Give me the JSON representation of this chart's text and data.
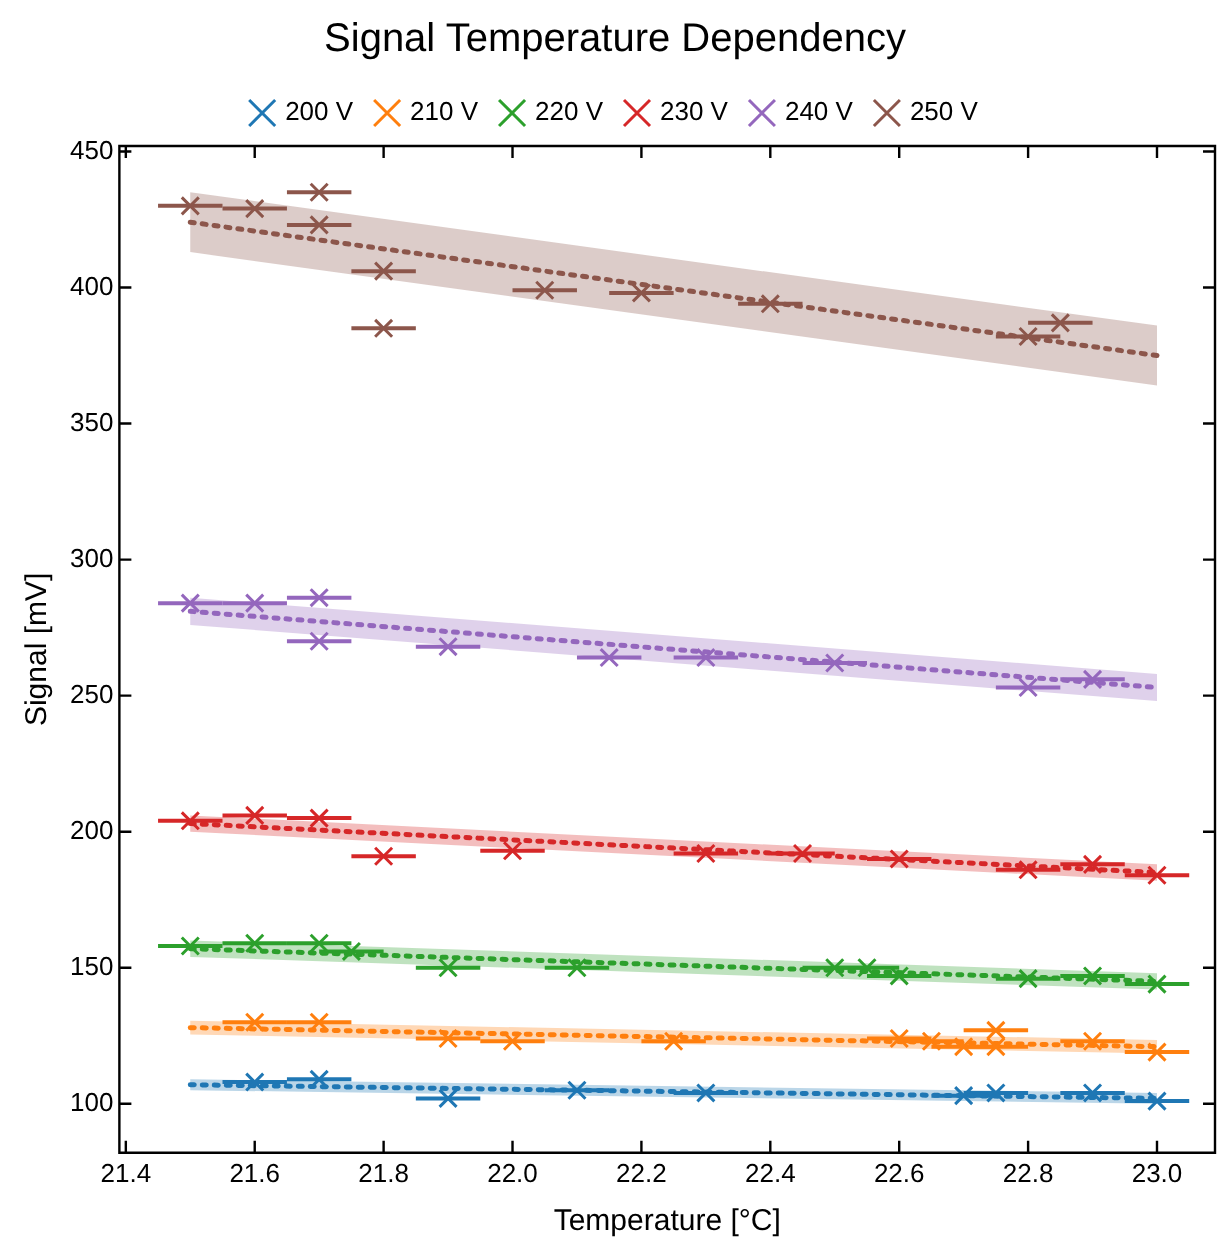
{
  "chart_data": {
    "type": "scatter",
    "title": "Signal Temperature Dependency",
    "xlabel": "Temperature [°C]",
    "ylabel": "Signal [mV]",
    "xlim": [
      21.39,
      23.09
    ],
    "ylim": [
      82,
      452
    ],
    "xticks": [
      21.4,
      21.6,
      21.8,
      {
        "value": 22,
        "label": "22.0"
      },
      22.2,
      22.4,
      22.6,
      22.8,
      {
        "value": 23,
        "label": "23.0"
      }
    ],
    "yticks": [
      100,
      150,
      200,
      250,
      300,
      350,
      400,
      450
    ],
    "grid": false,
    "legend": "top",
    "marker": "cross",
    "series": [
      {
        "name": "200 V",
        "color": "#1f77b4",
        "x": [
          21.6,
          21.7,
          21.9,
          22.1,
          22.3,
          22.7,
          22.75,
          22.9,
          23.0
        ],
        "values": [
          108,
          109,
          102,
          105,
          104,
          103,
          104,
          104,
          101
        ],
        "xerrors": [
          0.05,
          0.05,
          0.05,
          0.05,
          0.05,
          0.05,
          0.05,
          0.05,
          0.05
        ]
      },
      {
        "name": "210 V",
        "color": "#ff7f0e",
        "x": [
          21.6,
          21.7,
          21.9,
          22.0,
          22.25,
          22.6,
          22.65,
          22.7,
          22.75,
          22.75,
          22.9,
          23.0
        ],
        "values": [
          130,
          130,
          124,
          123,
          123,
          124,
          123,
          121,
          121,
          127,
          123,
          119
        ],
        "xerrors": [
          0.05,
          0.05,
          0.05,
          0.05,
          0.05,
          0.05,
          0.05,
          0.05,
          0.05,
          0.05,
          0.05,
          0.05
        ]
      },
      {
        "name": "220 V",
        "color": "#2ca02c",
        "x": [
          21.5,
          21.6,
          21.7,
          21.75,
          21.9,
          22.1,
          22.5,
          22.55,
          22.6,
          22.8,
          22.9,
          23.0
        ],
        "values": [
          158,
          159,
          159,
          156,
          150,
          150,
          150,
          150,
          147,
          146,
          147,
          144
        ],
        "xerrors": [
          0.05,
          0.05,
          0.05,
          0.05,
          0.05,
          0.05,
          0.05,
          0.05,
          0.05,
          0.05,
          0.05,
          0.05
        ]
      },
      {
        "name": "230 V",
        "color": "#d62728",
        "x": [
          21.5,
          21.6,
          21.7,
          21.8,
          22.0,
          22.3,
          22.45,
          22.6,
          22.8,
          22.9,
          23.0
        ],
        "values": [
          204,
          206,
          205,
          191,
          193,
          192,
          192,
          190,
          186,
          188,
          184
        ],
        "xerrors": [
          0.05,
          0.05,
          0.05,
          0.05,
          0.05,
          0.05,
          0.05,
          0.05,
          0.05,
          0.05,
          0.05
        ]
      },
      {
        "name": "240 V",
        "color": "#9467bd",
        "x": [
          21.5,
          21.6,
          21.7,
          21.7,
          21.9,
          22.15,
          22.3,
          22.5,
          22.8,
          22.9
        ],
        "values": [
          284,
          284,
          286,
          270,
          268,
          264,
          264,
          262,
          253,
          256
        ],
        "xerrors": [
          0.05,
          0.05,
          0.05,
          0.05,
          0.05,
          0.05,
          0.05,
          0.05,
          0.05,
          0.05
        ]
      },
      {
        "name": "250 V",
        "color": "#8c564b",
        "x": [
          21.5,
          21.6,
          21.7,
          21.7,
          21.8,
          21.8,
          22.05,
          22.2,
          22.4,
          22.8,
          22.85
        ],
        "values": [
          430,
          429,
          435,
          423,
          406,
          385,
          399,
          398,
          394,
          382,
          387
        ],
        "xerrors": [
          0.05,
          0.05,
          0.05,
          0.05,
          0.05,
          0.05,
          0.05,
          0.05,
          0.05,
          0.05,
          0.05
        ]
      },
      {
        "type": "line",
        "marker": "none",
        "line_style": "dotted",
        "color": "#1f77b4",
        "x": [
          21.5,
          23.0
        ],
        "values": [
          107,
          102
        ],
        "lower": [
          105,
          100
        ],
        "upper": [
          109,
          104
        ]
      },
      {
        "type": "line",
        "marker": "none",
        "line_style": "dotted",
        "color": "#ff7f0e",
        "x": [
          21.5,
          23.0
        ],
        "values": [
          128,
          121
        ],
        "lower": [
          125.5,
          118.5
        ],
        "upper": [
          130.5,
          123.5
        ]
      },
      {
        "type": "line",
        "marker": "none",
        "line_style": "dotted",
        "color": "#2ca02c",
        "x": [
          21.5,
          23.0
        ],
        "values": [
          157,
          145
        ],
        "lower": [
          154,
          142
        ],
        "upper": [
          160,
          148
        ]
      },
      {
        "type": "line",
        "marker": "none",
        "line_style": "dotted",
        "color": "#d62728",
        "x": [
          21.5,
          23.0
        ],
        "values": [
          203,
          185
        ],
        "lower": [
          200,
          182
        ],
        "upper": [
          206,
          188
        ]
      },
      {
        "type": "line",
        "marker": "none",
        "line_style": "dotted",
        "color": "#9467bd",
        "x": [
          21.5,
          23.0
        ],
        "values": [
          281,
          253
        ],
        "lower": [
          276,
          248
        ],
        "upper": [
          286,
          258
        ]
      },
      {
        "type": "line",
        "marker": "none",
        "line_style": "dotted",
        "color": "#8c564b",
        "x": [
          21.5,
          23.0
        ],
        "values": [
          424,
          375
        ],
        "lower": [
          413,
          364
        ],
        "upper": [
          435,
          386
        ]
      }
    ]
  }
}
